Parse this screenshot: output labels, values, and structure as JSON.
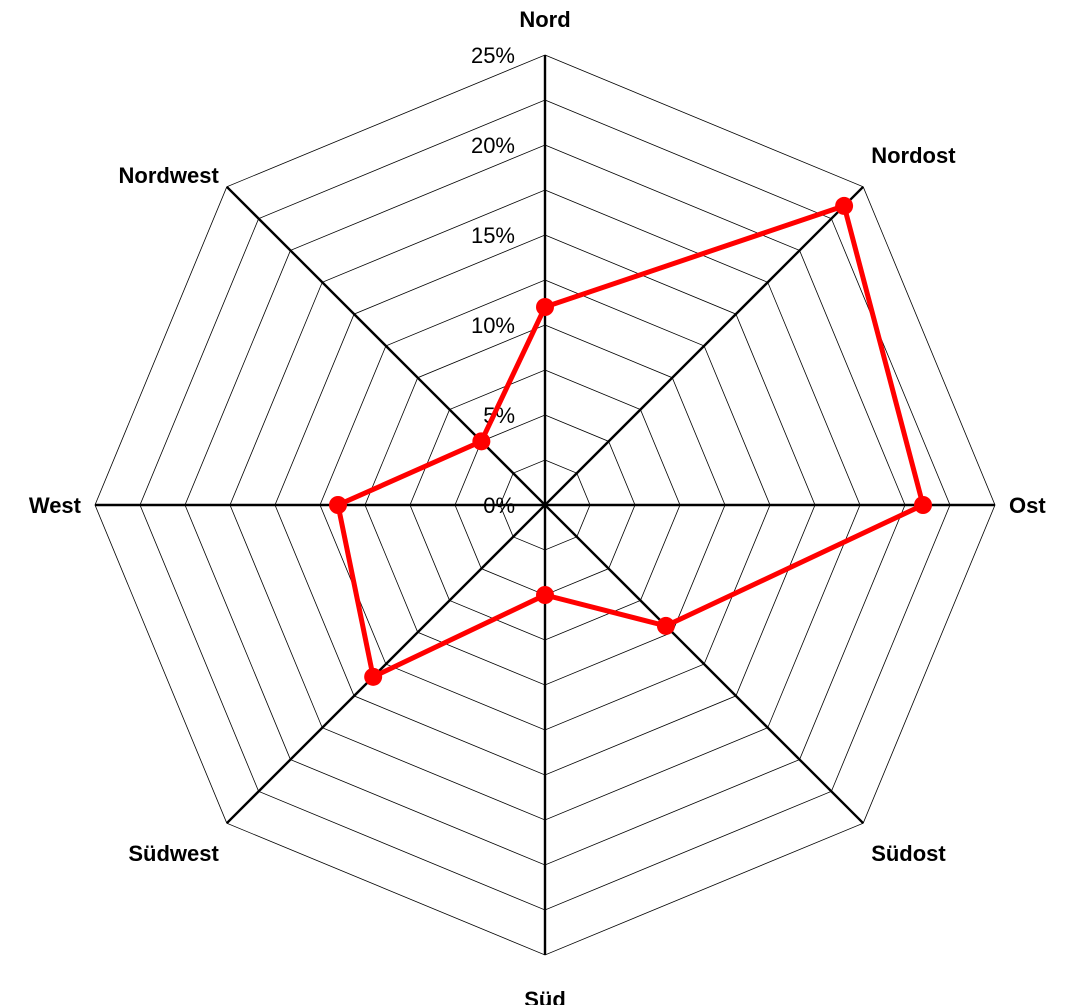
{
  "chart_data": {
    "type": "radar",
    "categories": [
      "Nord",
      "Nordost",
      "Ost",
      "Südost",
      "Süd",
      "Südwest",
      "West",
      "Nordwest"
    ],
    "series": [
      {
        "values": [
          11,
          23.5,
          21,
          9.5,
          5,
          13.5,
          11.5,
          5
        ],
        "color": "#ff0000"
      }
    ],
    "r_range": [
      0,
      25
    ],
    "r_ticks": [
      0,
      5,
      10,
      15,
      20,
      25
    ],
    "r_tick_labels": [
      "0%",
      "5%",
      "10%",
      "15%",
      "20%",
      "25%"
    ],
    "grid_rings": [
      2.5,
      5,
      7.5,
      10,
      12.5,
      15,
      17.5,
      20,
      22.5,
      25
    ],
    "grid": true,
    "legend": "none"
  }
}
